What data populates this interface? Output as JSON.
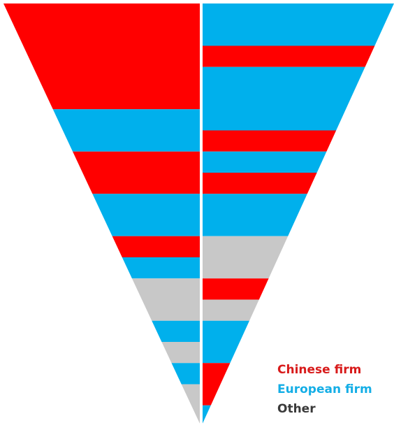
{
  "colors": {
    "chinese": "#ff0000",
    "european": "#00b0ec",
    "other": "#c8c8c8",
    "background": "#ffffff"
  },
  "legend": [
    {
      "key": "chinese",
      "label": "Chinese firm",
      "color": "#d81b1b"
    },
    {
      "key": "european",
      "label": "European firm",
      "color": "#14aee6"
    },
    {
      "key": "other",
      "label": "Other",
      "color": "#3a3a3a"
    }
  ],
  "chart_data": {
    "type": "inverted-triangle stacked bands",
    "axis_unit": "band",
    "total_bands": 20,
    "categories": [
      "Chinese firm",
      "European firm",
      "Other"
    ],
    "series": [
      {
        "side": "left",
        "bands": [
          {
            "category": "chinese",
            "span": 5
          },
          {
            "category": "european",
            "span": 2
          },
          {
            "category": "chinese",
            "span": 2
          },
          {
            "category": "european",
            "span": 2
          },
          {
            "category": "chinese",
            "span": 1
          },
          {
            "category": "european",
            "span": 1
          },
          {
            "category": "other",
            "span": 2
          },
          {
            "category": "european",
            "span": 1
          },
          {
            "category": "other",
            "span": 1
          },
          {
            "category": "european",
            "span": 1
          },
          {
            "category": "other",
            "span": 2
          }
        ]
      },
      {
        "side": "right",
        "bands": [
          {
            "category": "european",
            "span": 2
          },
          {
            "category": "chinese",
            "span": 1
          },
          {
            "category": "european",
            "span": 3
          },
          {
            "category": "chinese",
            "span": 1
          },
          {
            "category": "european",
            "span": 1
          },
          {
            "category": "chinese",
            "span": 1
          },
          {
            "category": "european",
            "span": 2
          },
          {
            "category": "other",
            "span": 2
          },
          {
            "category": "chinese",
            "span": 1
          },
          {
            "category": "other",
            "span": 1
          },
          {
            "category": "european",
            "span": 2
          },
          {
            "category": "chinese",
            "span": 2
          },
          {
            "category": "european",
            "span": 1
          }
        ]
      }
    ]
  }
}
